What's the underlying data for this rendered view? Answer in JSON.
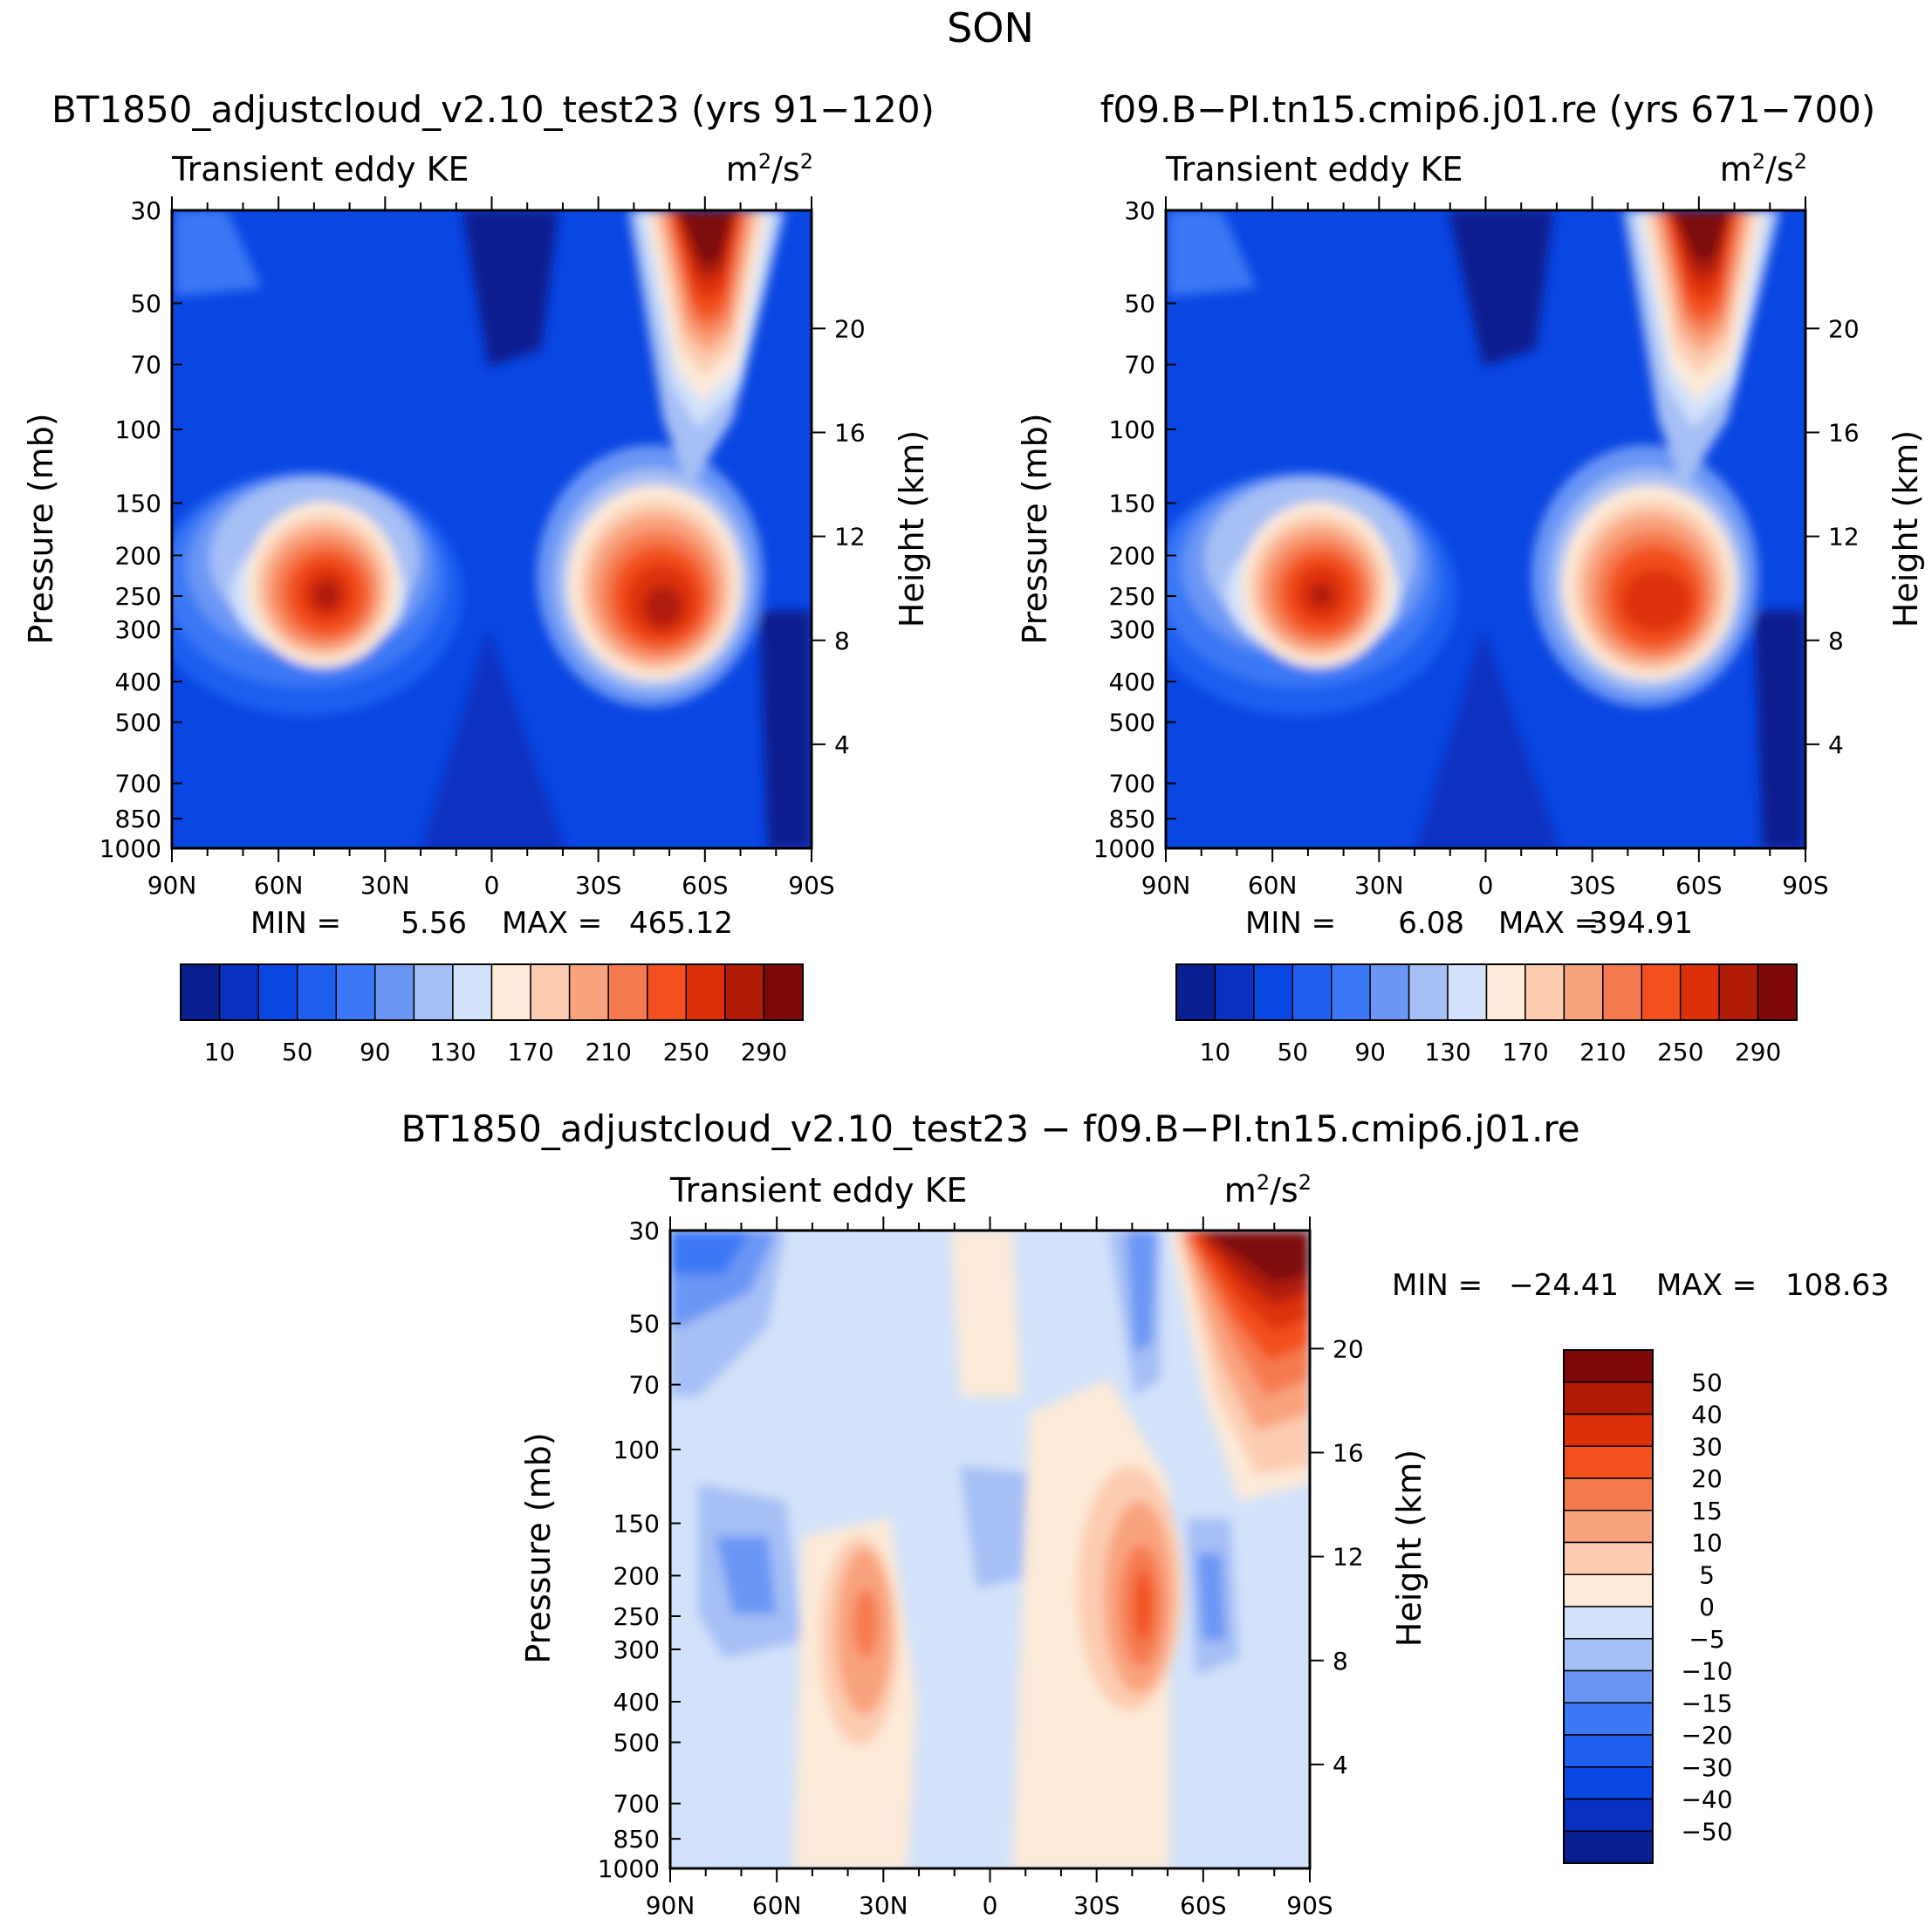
{
  "title": "SON",
  "colors": {
    "panel_fill": [
      "#0a1f8f",
      "#0a30c2",
      "#0a46e2",
      "#1f5ef0",
      "#3b78f5",
      "#6a96f5",
      "#a6bff5",
      "#d3e2fa",
      "#fdead8",
      "#fcccb0",
      "#f9a27e",
      "#f67a4f",
      "#f2501f",
      "#de3008",
      "#b01b08",
      "#7e0a08"
    ],
    "diff_fill": [
      "#0a1f8f",
      "#0a30c2",
      "#0a46e2",
      "#1f5ef0",
      "#3b78f5",
      "#6a96f5",
      "#a6bff5",
      "#d3e2fa",
      "#fdead8",
      "#fcccb0",
      "#f9a27e",
      "#f67a4f",
      "#f2501f",
      "#de3008",
      "#b01b08",
      "#7e0a08"
    ]
  },
  "chart_data": [
    {
      "type": "contour",
      "title": "BT1850_adjustcloud_v2.10_test23 (yrs 91−120)",
      "variable": "Transient eddy KE",
      "units": "m²/s²",
      "units_base": "m",
      "units_mid": "/s",
      "units_exp": "2",
      "ylabel": "Pressure (mb)",
      "ylabel2": "Height (km)",
      "xticks": [
        "90N",
        "60N",
        "30N",
        "0",
        "30S",
        "60S",
        "90S"
      ],
      "yticks": [
        "30",
        "50",
        "70",
        "100",
        "150",
        "200",
        "250",
        "300",
        "400",
        "500",
        "700",
        "850",
        "1000"
      ],
      "yticks_values": [
        30,
        50,
        70,
        100,
        150,
        200,
        250,
        300,
        400,
        500,
        700,
        850,
        1000
      ],
      "height_ticks": [
        "20",
        "16",
        "12",
        "8",
        "4"
      ],
      "height_values": [
        20,
        16,
        12,
        8,
        4
      ],
      "min_label": "MIN =",
      "min": "5.56",
      "max_label": "MAX =",
      "max": "465.12",
      "colorbar_labels": [
        "10",
        "50",
        "90",
        "130",
        "170",
        "210",
        "250",
        "290"
      ],
      "levels": [
        10,
        30,
        50,
        70,
        90,
        110,
        130,
        150,
        170,
        190,
        210,
        230,
        250,
        270,
        290
      ]
    },
    {
      "type": "contour",
      "title": "f09.B−PI.tn15.cmip6.j01.re (yrs 671−700)",
      "variable": "Transient eddy KE",
      "units": "m²/s²",
      "units_base": "m",
      "units_mid": "/s",
      "units_exp": "2",
      "ylabel": "Pressure (mb)",
      "ylabel2": "Height (km)",
      "xticks": [
        "90N",
        "60N",
        "30N",
        "0",
        "30S",
        "60S",
        "90S"
      ],
      "yticks": [
        "30",
        "50",
        "70",
        "100",
        "150",
        "200",
        "250",
        "300",
        "400",
        "500",
        "700",
        "850",
        "1000"
      ],
      "yticks_values": [
        30,
        50,
        70,
        100,
        150,
        200,
        250,
        300,
        400,
        500,
        700,
        850,
        1000
      ],
      "height_ticks": [
        "20",
        "16",
        "12",
        "8",
        "4"
      ],
      "height_values": [
        20,
        16,
        12,
        8,
        4
      ],
      "min_label": "MIN =",
      "min": "6.08",
      "max_label": "MAX =",
      "max": "394.91",
      "colorbar_labels": [
        "10",
        "50",
        "90",
        "130",
        "170",
        "210",
        "250",
        "290"
      ],
      "levels": [
        10,
        30,
        50,
        70,
        90,
        110,
        130,
        150,
        170,
        190,
        210,
        230,
        250,
        270,
        290
      ]
    },
    {
      "type": "contour",
      "title": "BT1850_adjustcloud_v2.10_test23 − f09.B−PI.tn15.cmip6.j01.re",
      "variable": "Transient eddy KE",
      "units": "m²/s²",
      "units_base": "m",
      "units_mid": "/s",
      "units_exp": "2",
      "ylabel": "Pressure (mb)",
      "ylabel2": "Height (km)",
      "xticks": [
        "90N",
        "60N",
        "30N",
        "0",
        "30S",
        "60S",
        "90S"
      ],
      "yticks": [
        "30",
        "50",
        "70",
        "100",
        "150",
        "200",
        "250",
        "300",
        "400",
        "500",
        "700",
        "850",
        "1000"
      ],
      "yticks_values": [
        30,
        50,
        70,
        100,
        150,
        200,
        250,
        300,
        400,
        500,
        700,
        850,
        1000
      ],
      "height_ticks": [
        "20",
        "16",
        "12",
        "8",
        "4"
      ],
      "height_values": [
        20,
        16,
        12,
        8,
        4
      ],
      "min_label": "MIN =",
      "min": "−24.41",
      "max_label": "MAX =",
      "max": "108.63",
      "colorbar_labels": [
        "50",
        "40",
        "30",
        "20",
        "15",
        "10",
        "5",
        "0",
        "−5",
        "−10",
        "−15",
        "−20",
        "−30",
        "−40",
        "−50"
      ],
      "levels": [
        -50,
        -40,
        -30,
        -20,
        -15,
        -10,
        -5,
        0,
        5,
        10,
        15,
        20,
        30,
        40,
        50
      ]
    }
  ]
}
